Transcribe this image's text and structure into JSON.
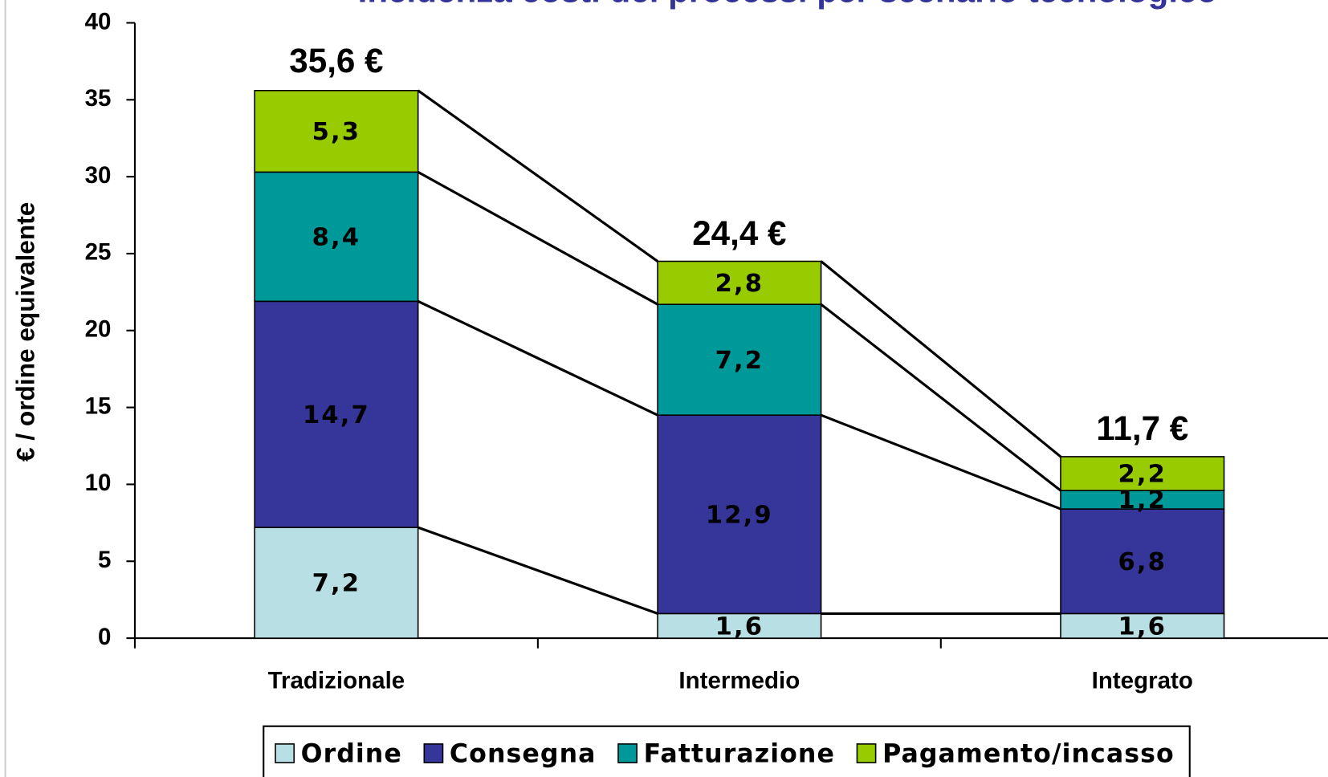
{
  "chart_data": {
    "type": "stacked_bar",
    "title": "Incidenza costi dei processi per scenario tecnologico",
    "y_label": "€ / ordine equivalente",
    "categories": [
      "Tradizionale",
      "Intermedio",
      "Integrato"
    ],
    "series": [
      {
        "name": "Ordine",
        "color": "#b8e0e4",
        "values": [
          7.2,
          1.6,
          1.6
        ],
        "value_labels": [
          "7,2",
          "1,6",
          "1,6"
        ]
      },
      {
        "name": "Consegna",
        "color": "#35359a",
        "values": [
          14.7,
          12.9,
          6.8
        ],
        "value_labels": [
          "14,7",
          "12,9",
          "6,8"
        ]
      },
      {
        "name": "Fatturazione",
        "color": "#009999",
        "values": [
          8.4,
          7.2,
          1.2
        ],
        "value_labels": [
          "8,4",
          "7,2",
          "1,2"
        ]
      },
      {
        "name": "Pagamento/incasso",
        "color": "#99cc00",
        "values": [
          5.3,
          2.8,
          2.2
        ],
        "value_labels": [
          "5,3",
          "2,8",
          "2,2"
        ]
      }
    ],
    "totals": [
      35.6,
      24.4,
      11.7
    ],
    "total_labels": [
      "35,6 €",
      "24,4 €",
      "11,7 €"
    ],
    "ylim": [
      0,
      40
    ],
    "yticks": [
      0,
      5,
      10,
      15,
      20,
      25,
      30,
      35,
      40
    ],
    "legend": "bottom"
  }
}
